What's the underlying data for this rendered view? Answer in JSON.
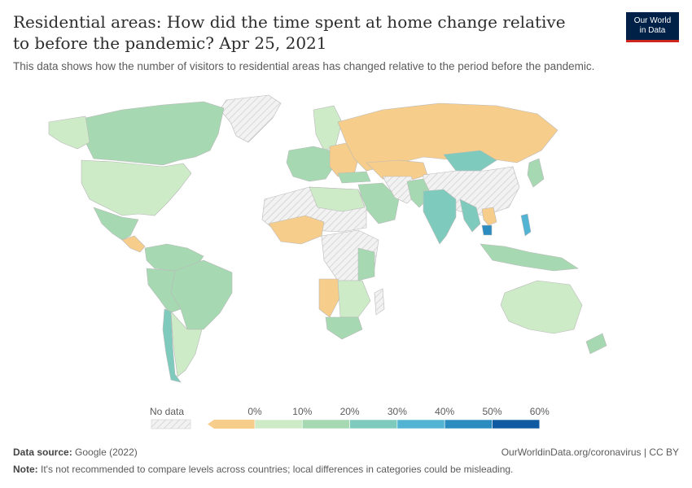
{
  "title": "Residential areas: How did the time spent at home change relative to before the pandemic? Apr 25, 2021",
  "subtitle": "This data shows how the number of visitors to residential areas has changed relative to the period before the pandemic.",
  "logo": {
    "line1": "Our World",
    "line2": "in Data"
  },
  "legend": {
    "no_data_label": "No data",
    "ticks": [
      "0%",
      "10%",
      "20%",
      "30%",
      "40%",
      "50%",
      "60%"
    ],
    "colors": [
      "#f7cd8b",
      "#cdebc7",
      "#a6d9b2",
      "#7ecbbd",
      "#52b4d2",
      "#2c8cbf",
      "#0f5aa0"
    ]
  },
  "map_colors": {
    "ocean": "#ffffff",
    "no_data": "#eeeeee",
    "border": "#b9b9b9"
  },
  "footer": {
    "source_label": "Data source:",
    "source_value": "Google (2022)",
    "url": "OurWorldinData.org/coronavirus | CC BY",
    "note_label": "Note:",
    "note_value": "It's not recommended to compare levels across countries; local differences in categories could be misleading."
  }
}
